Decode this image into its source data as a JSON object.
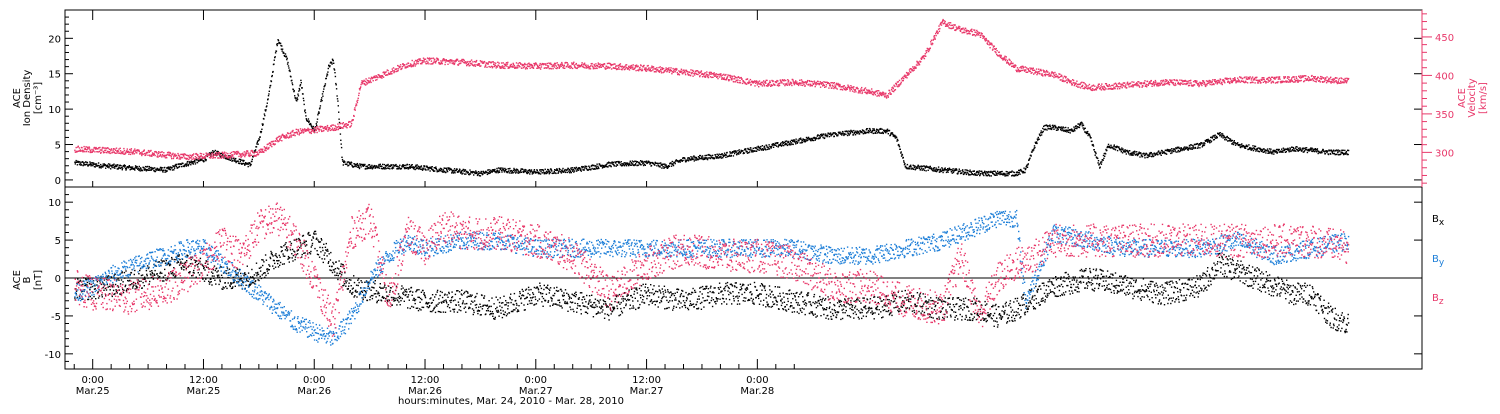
{
  "chart_data": [
    {
      "type": "scatter",
      "panel": "top",
      "ylabel_left": [
        "ACE",
        "Ion Density",
        "[cm⁻³]"
      ],
      "ylabel_right": [
        "ACE",
        "Velocity",
        "[km/s]"
      ],
      "ylim_left": [
        -1,
        24
      ],
      "ylim_right": [
        255,
        485
      ],
      "yticks_left": [
        0,
        5,
        10,
        15,
        20
      ],
      "yticks_right": [
        300,
        350,
        400,
        450
      ],
      "xlim_hours": [
        -3,
        144
      ],
      "series": [
        {
          "axis": "left",
          "color": "#000000",
          "keypoints": [
            [
              -2,
              2.5
            ],
            [
              2,
              2.0
            ],
            [
              4,
              1.8
            ],
            [
              8,
              1.5
            ],
            [
              9,
              2.0
            ],
            [
              12,
              3.0
            ],
            [
              13,
              4.0
            ],
            [
              17,
              2.2
            ],
            [
              18,
              6
            ],
            [
              19,
              12
            ],
            [
              20,
              20
            ],
            [
              21,
              17
            ],
            [
              22,
              11
            ],
            [
              22.5,
              14
            ],
            [
              23,
              9
            ],
            [
              24,
              7
            ],
            [
              25,
              13
            ],
            [
              25.5,
              16
            ],
            [
              26,
              17
            ],
            [
              26.5,
              11
            ],
            [
              27,
              2.5
            ],
            [
              29,
              2.0
            ],
            [
              34,
              2.0
            ],
            [
              38,
              1.5
            ],
            [
              42,
              1.0
            ],
            [
              44,
              1.5
            ],
            [
              48,
              1.2
            ],
            [
              52,
              1.5
            ],
            [
              56,
              2.3
            ],
            [
              60,
              2.5
            ],
            [
              62,
              2.0
            ],
            [
              64,
              3.0
            ],
            [
              68,
              3.5
            ],
            [
              72,
              4.5
            ],
            [
              76,
              5.5
            ],
            [
              80,
              6.5
            ],
            [
              84,
              7
            ],
            [
              86,
              7
            ],
            [
              87,
              6
            ],
            [
              88,
              2.0
            ],
            [
              92,
              1.5
            ],
            [
              96,
              1.0
            ],
            [
              100,
              1.0
            ],
            [
              101,
              1.5
            ],
            [
              102,
              5
            ],
            [
              103,
              7.5
            ],
            [
              104,
              7.5
            ],
            [
              106,
              7.0
            ],
            [
              107,
              8.0
            ],
            [
              108,
              6.0
            ],
            [
              109,
              2.0
            ],
            [
              110,
              5.0
            ],
            [
              112,
              4.0
            ],
            [
              114,
              3.5
            ],
            [
              116,
              4.0
            ],
            [
              118,
              4.5
            ],
            [
              120,
              5.0
            ],
            [
              122,
              6.5
            ],
            [
              124,
              5.0
            ],
            [
              126,
              4.5
            ],
            [
              128,
              4.0
            ],
            [
              130,
              4.5
            ],
            [
              134,
              4.0
            ],
            [
              136,
              4.0
            ]
          ],
          "noise": 0.35
        },
        {
          "axis": "right",
          "color": "#e8386a",
          "keypoints": [
            [
              -2,
              305
            ],
            [
              4,
              302
            ],
            [
              10,
              295
            ],
            [
              14,
              297
            ],
            [
              18,
              300
            ],
            [
              20,
              318
            ],
            [
              22,
              327
            ],
            [
              24,
              330
            ],
            [
              26,
              333
            ],
            [
              28,
              338
            ],
            [
              29,
              390
            ],
            [
              32,
              405
            ],
            [
              34,
              415
            ],
            [
              36,
              420
            ],
            [
              40,
              418
            ],
            [
              44,
              414
            ],
            [
              48,
              413
            ],
            [
              52,
              414
            ],
            [
              56,
              413
            ],
            [
              60,
              410
            ],
            [
              64,
              405
            ],
            [
              68,
              400
            ],
            [
              72,
              390
            ],
            [
              76,
              392
            ],
            [
              80,
              388
            ],
            [
              84,
              380
            ],
            [
              86,
              375
            ],
            [
              88,
              400
            ],
            [
              90,
              425
            ],
            [
              92,
              470
            ],
            [
              94,
              460
            ],
            [
              96,
              455
            ],
            [
              98,
              430
            ],
            [
              100,
              410
            ],
            [
              104,
              402
            ],
            [
              106,
              392
            ],
            [
              108,
              385
            ],
            [
              112,
              388
            ],
            [
              116,
              392
            ],
            [
              120,
              390
            ],
            [
              124,
              395
            ],
            [
              128,
              395
            ],
            [
              132,
              397
            ],
            [
              136,
              393
            ]
          ],
          "noise": 4
        }
      ]
    },
    {
      "type": "scatter",
      "panel": "bottom",
      "ylabel_left": [
        "ACE",
        "B",
        "[nT]"
      ],
      "ylim_left": [
        -12,
        12
      ],
      "yticks_left": [
        -10,
        -5,
        0,
        5,
        10
      ],
      "zero_line": true,
      "legend": [
        "Bx",
        "By",
        "Bz"
      ],
      "xlim_hours": [
        -3,
        144
      ],
      "series": [
        {
          "name": "Bx",
          "color": "#000000",
          "keypoints": [
            [
              -2,
              -1.5
            ],
            [
              2,
              -1
            ],
            [
              6,
              0.5
            ],
            [
              10,
              2
            ],
            [
              12,
              1
            ],
            [
              14,
              0
            ],
            [
              16,
              0
            ],
            [
              18,
              1
            ],
            [
              20,
              3
            ],
            [
              22,
              4
            ],
            [
              24,
              5
            ],
            [
              26,
              2
            ],
            [
              28,
              -1
            ],
            [
              32,
              -2
            ],
            [
              36,
              -3
            ],
            [
              40,
              -3
            ],
            [
              44,
              -4
            ],
            [
              48,
              -2
            ],
            [
              52,
              -3
            ],
            [
              56,
              -4
            ],
            [
              60,
              -2
            ],
            [
              64,
              -3
            ],
            [
              68,
              -2
            ],
            [
              72,
              -2
            ],
            [
              76,
              -3
            ],
            [
              80,
              -4
            ],
            [
              84,
              -4
            ],
            [
              88,
              -3
            ],
            [
              92,
              -4
            ],
            [
              96,
              -4
            ],
            [
              98,
              -5
            ],
            [
              100,
              -4
            ],
            [
              104,
              -1
            ],
            [
              108,
              0
            ],
            [
              112,
              -1
            ],
            [
              116,
              -2
            ],
            [
              120,
              -1
            ],
            [
              122,
              2
            ],
            [
              124,
              1
            ],
            [
              128,
              -1
            ],
            [
              130,
              -2
            ],
            [
              132,
              -2
            ],
            [
              134,
              -5
            ],
            [
              136,
              -6
            ]
          ],
          "noise": 1.5
        },
        {
          "name": "By",
          "color": "#1e7fd8",
          "keypoints": [
            [
              -2,
              -2
            ],
            [
              0,
              -1
            ],
            [
              2,
              0.5
            ],
            [
              4,
              1.5
            ],
            [
              6,
              2.5
            ],
            [
              8,
              3
            ],
            [
              10,
              4
            ],
            [
              12,
              4
            ],
            [
              14,
              2
            ],
            [
              16,
              0
            ],
            [
              18,
              -2
            ],
            [
              20,
              -4
            ],
            [
              22,
              -6
            ],
            [
              24,
              -7
            ],
            [
              26,
              -8
            ],
            [
              28,
              -5
            ],
            [
              30,
              0
            ],
            [
              32,
              3
            ],
            [
              34,
              5
            ],
            [
              36,
              4
            ],
            [
              40,
              5
            ],
            [
              44,
              5
            ],
            [
              48,
              4
            ],
            [
              52,
              4
            ],
            [
              56,
              4
            ],
            [
              60,
              4
            ],
            [
              64,
              4
            ],
            [
              68,
              4
            ],
            [
              72,
              4
            ],
            [
              76,
              4
            ],
            [
              80,
              3
            ],
            [
              84,
              3
            ],
            [
              88,
              4
            ],
            [
              92,
              5
            ],
            [
              94,
              6
            ],
            [
              96,
              7
            ],
            [
              98,
              8
            ],
            [
              100,
              8
            ],
            [
              101,
              -3
            ],
            [
              104,
              6
            ],
            [
              108,
              5
            ],
            [
              112,
              4
            ],
            [
              116,
              4
            ],
            [
              120,
              4
            ],
            [
              124,
              5
            ],
            [
              128,
              3
            ],
            [
              132,
              4
            ],
            [
              136,
              5
            ]
          ],
          "noise": 1.2
        },
        {
          "name": "Bz",
          "color": "#e8386a",
          "keypoints": [
            [
              -2,
              -1
            ],
            [
              0,
              -2
            ],
            [
              4,
              -2.5
            ],
            [
              8,
              -1.5
            ],
            [
              12,
              2
            ],
            [
              14,
              5
            ],
            [
              16,
              3
            ],
            [
              18,
              7
            ],
            [
              20,
              8
            ],
            [
              22,
              5
            ],
            [
              24,
              0
            ],
            [
              26,
              -6
            ],
            [
              28,
              6
            ],
            [
              30,
              8
            ],
            [
              32,
              -3
            ],
            [
              34,
              6
            ],
            [
              36,
              4
            ],
            [
              38,
              7
            ],
            [
              40,
              6
            ],
            [
              44,
              6
            ],
            [
              48,
              5
            ],
            [
              52,
              3
            ],
            [
              56,
              -2
            ],
            [
              60,
              2
            ],
            [
              64,
              4
            ],
            [
              68,
              3
            ],
            [
              72,
              3
            ],
            [
              76,
              2
            ],
            [
              80,
              -1
            ],
            [
              84,
              -1
            ],
            [
              88,
              -3
            ],
            [
              92,
              -4
            ],
            [
              94,
              3
            ],
            [
              96,
              -5
            ],
            [
              98,
              0
            ],
            [
              100,
              2
            ],
            [
              102,
              3
            ],
            [
              104,
              5
            ],
            [
              108,
              5
            ],
            [
              112,
              5
            ],
            [
              116,
              5
            ],
            [
              120,
              5
            ],
            [
              124,
              5
            ],
            [
              128,
              5
            ],
            [
              132,
              5
            ],
            [
              136,
              4
            ]
          ],
          "noise": 2.2
        }
      ]
    }
  ],
  "x_axis": {
    "ticks": [
      {
        "time": "0:00",
        "date": "Mar.25"
      },
      {
        "time": "12:00",
        "date": "Mar.25"
      },
      {
        "time": "0:00",
        "date": "Mar.26"
      },
      {
        "time": "12:00",
        "date": "Mar.26"
      },
      {
        "time": "0:00",
        "date": "Mar.27"
      },
      {
        "time": "12:00",
        "date": "Mar.27"
      },
      {
        "time": "0:00",
        "date": "Mar.28"
      }
    ],
    "tick_hours": [
      0,
      12,
      24,
      36,
      48,
      60,
      72
    ],
    "title": "hours:minutes, Mar. 24, 2010 - Mar. 28, 2010"
  },
  "legend_labels": {
    "bx": "B",
    "by": "B",
    "bz": "B",
    "bx_sub": "x",
    "by_sub": "y",
    "bz_sub": "z"
  },
  "colors": {
    "black": "#000000",
    "pink": "#e8386a",
    "blue": "#1e7fd8"
  }
}
